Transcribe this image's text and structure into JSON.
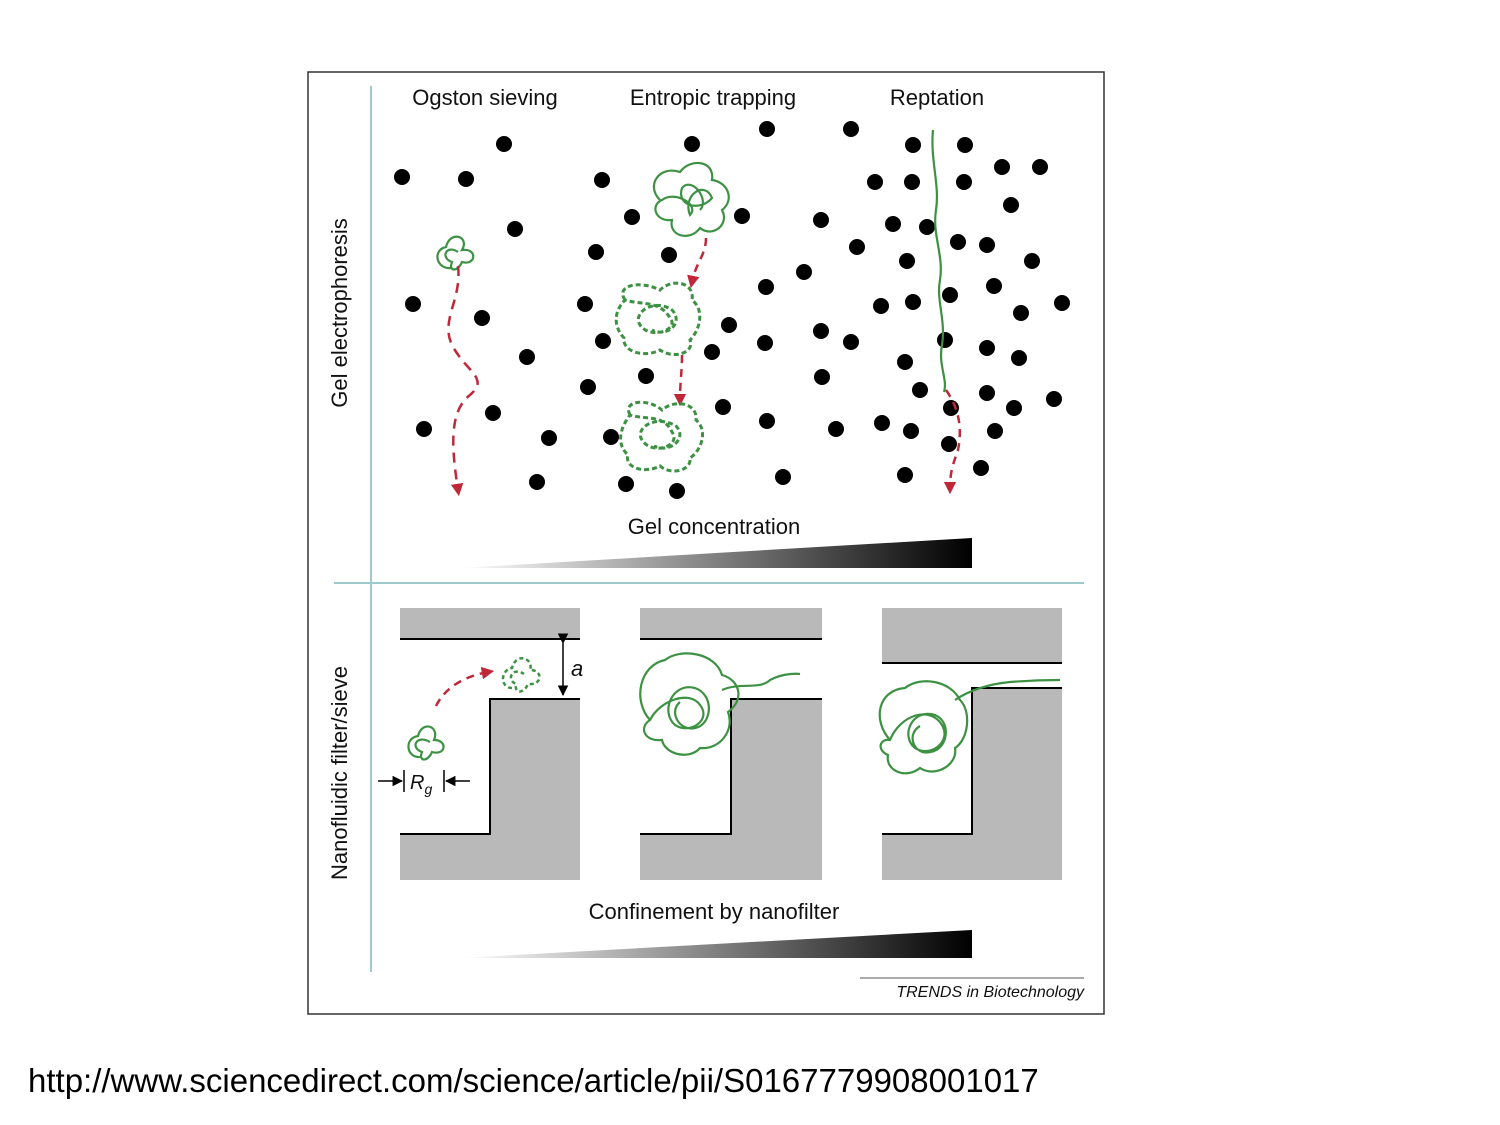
{
  "figure": {
    "section_top_label": "Gel electrophoresis",
    "section_bottom_label": "Nanofluidic filter/sieve",
    "columns": [
      "Ogston sieving",
      "Entropic trapping",
      "Reptation"
    ],
    "gradient_top_label": "Gel concentration",
    "gradient_bottom_label": "Confinement by nanofilter",
    "gap_symbol": "a",
    "radius_symbol": "R",
    "radius_subscript": "g",
    "credit_prefix": "TRENDS",
    "credit_suffix": "in Biotechnology",
    "colors": {
      "polymer": "#3d9142",
      "arrow": "#c0283a",
      "gel_particle": "#000000",
      "wall": "#b9b9b9",
      "divider": "#9cc9cc"
    }
  },
  "source_url": "http://www.sciencedirect.com/science/article/pii/S0167779908001017"
}
